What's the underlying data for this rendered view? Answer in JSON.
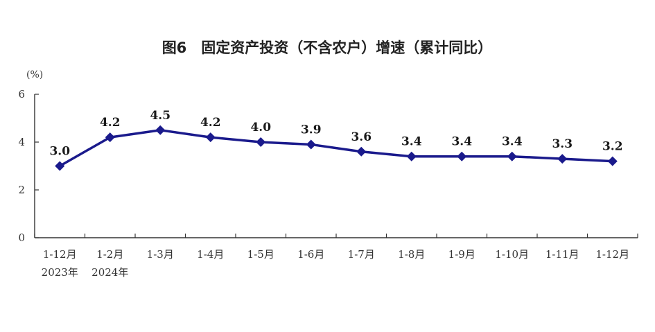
{
  "chart_data": {
    "type": "line",
    "title": "图6　固定资产投资（不含农户）增速（累计同比）",
    "ylabel": "(%)",
    "categories": [
      "1-12月",
      "1-2月",
      "1-3月",
      "1-4月",
      "1-5月",
      "1-6月",
      "1-7月",
      "1-8月",
      "1-9月",
      "1-10月",
      "1-11月",
      "1-12月"
    ],
    "year_labels": [
      "2023年",
      "2024年"
    ],
    "series": [
      {
        "values": [
          3.0,
          4.2,
          4.5,
          4.2,
          4.0,
          3.9,
          3.6,
          3.4,
          3.4,
          3.4,
          3.3,
          3.2
        ],
        "labels": [
          "3.0",
          "4.2",
          "4.5",
          "4.2",
          "4.0",
          "3.9",
          "3.6",
          "3.4",
          "3.4",
          "3.4",
          "3.3",
          "3.2"
        ]
      }
    ],
    "ylim": [
      0,
      6
    ],
    "yticks": [
      "0",
      "2",
      "4",
      "6"
    ],
    "grid": false,
    "legend": "none",
    "line_color": "#1a1a8c"
  }
}
